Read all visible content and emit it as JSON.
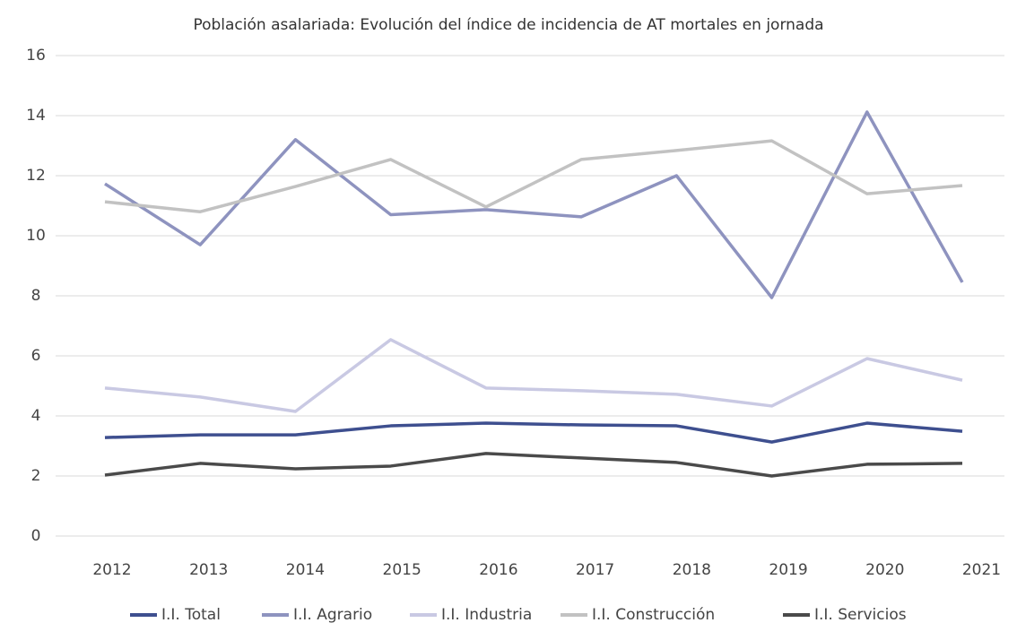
{
  "chart_data": {
    "type": "line",
    "title": "Población asalariada: Evolución del índice de incidencia de AT mortales en jornada",
    "categories": [
      "2012",
      "2013",
      "2014",
      "2015",
      "2016",
      "2017",
      "2018",
      "2019",
      "2020",
      "2021"
    ],
    "series": [
      {
        "name": "I.I. Total",
        "color": "#3e4f8f",
        "values": [
          3.28,
          3.37,
          3.37,
          3.67,
          3.76,
          3.7,
          3.67,
          3.13,
          3.76,
          3.49
        ]
      },
      {
        "name": "I.I. Agrario",
        "color": "#8e93bf",
        "values": [
          11.73,
          9.7,
          13.2,
          10.7,
          10.87,
          10.63,
          12.0,
          7.94,
          14.12,
          8.45
        ]
      },
      {
        "name": "I.I. Industria",
        "color": "#c9c9e3",
        "values": [
          4.93,
          4.63,
          4.15,
          6.54,
          4.93,
          4.84,
          4.72,
          4.33,
          5.91,
          5.19
        ]
      },
      {
        "name": "I.I. Construcción",
        "color": "#c2c2c2",
        "values": [
          11.13,
          10.8,
          11.64,
          12.54,
          10.96,
          12.54,
          12.84,
          13.16,
          11.4,
          11.67
        ]
      },
      {
        "name": "I.I. Servicios",
        "color": "#4a4a4a",
        "values": [
          2.03,
          2.42,
          2.24,
          2.33,
          2.75,
          2.6,
          2.45,
          2.0,
          2.39,
          2.42
        ]
      }
    ],
    "ylim": [
      0,
      16
    ],
    "yticks": [
      0,
      2,
      4,
      6,
      8,
      10,
      12,
      14,
      16
    ],
    "grid": true,
    "legend": "bottom"
  }
}
